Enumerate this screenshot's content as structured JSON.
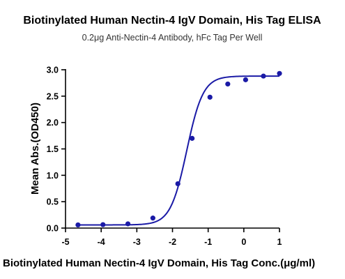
{
  "chart_data": {
    "type": "scatter",
    "title": "Biotinylated Human Nectin-4 IgV Domain, His Tag  ELISA",
    "subtitle": "0.2μg Anti-Nectin-4 Antibody, hFc Tag Per Well",
    "xlabel": "Biotinylated Human Nectin-4 IgV Domain, His Tag Conc.(μg/ml)",
    "ylabel": "Mean Abs.(OD450)",
    "xlim": [
      -5,
      1
    ],
    "ylim": [
      0,
      3.0
    ],
    "x_ticks": [
      "-5",
      "-4",
      "-3",
      "-2",
      "-1",
      "0",
      "1"
    ],
    "y_ticks": [
      "0.0",
      "0.5",
      "1.0",
      "1.5",
      "2.0",
      "2.5",
      "3.0"
    ],
    "color": "#1a1aa6",
    "fit": "sigmoidal (4PL)",
    "series": [
      {
        "x": [
          -4.65,
          -3.95,
          -3.25,
          -2.55,
          -1.85,
          -1.45,
          -0.95,
          -0.45,
          0.05,
          0.55,
          1.0
        ],
        "y": [
          0.06,
          0.065,
          0.08,
          0.19,
          0.84,
          1.7,
          2.48,
          2.73,
          2.81,
          2.88,
          2.93
        ]
      }
    ],
    "curve": {
      "bottom": 0.06,
      "top": 2.88,
      "logEC50": -1.6,
      "hill": 1.9
    }
  }
}
